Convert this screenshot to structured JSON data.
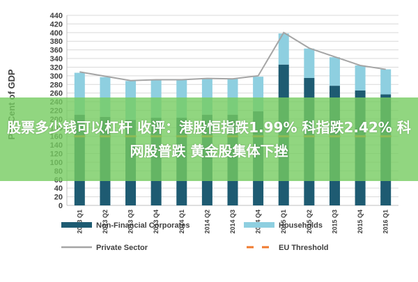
{
  "colors": {
    "non_financial": "#1e5b72",
    "households": "#8ecfe0",
    "private_sector": "#a5a5a5",
    "eu_threshold": "#f07a2e",
    "banner": "#76cc60",
    "grid": "#d9d9d9"
  },
  "banner": {
    "text": "股票多少钱可以杠杆 收评：港股恒指跌1.99% 科指跌2.42% 科网股普跌 黄金股集体下挫"
  },
  "chart_data": {
    "type": "bar",
    "stacked": true,
    "title": "",
    "xlabel": "",
    "ylabel": "Per Cent of GDP",
    "ylim": [
      0,
      440
    ],
    "yticks": [
      0,
      20,
      40,
      60,
      80,
      100,
      120,
      140,
      160,
      180,
      200,
      220,
      240,
      260,
      280,
      300,
      320,
      340,
      360,
      380,
      400,
      420,
      440
    ],
    "categories": [
      "2013 Q1",
      "2013 Q2",
      "2013 Q3",
      "2013 Q4",
      "2014 Q1",
      "2014 Q2",
      "2014 Q3",
      "2014 Q4",
      "2015 Q1",
      "2015 Q2",
      "2015 Q3",
      "2015 Q4",
      "2016 Q1"
    ],
    "series": [
      {
        "name": "Non-Financial Corporates",
        "kind": "bar",
        "values": [
          210,
          205,
          198,
          203,
          203,
          210,
          210,
          218,
          326,
          295,
          277,
          266,
          257
        ]
      },
      {
        "name": "Households",
        "kind": "bar",
        "values": [
          97,
          92,
          90,
          88,
          88,
          84,
          83,
          80,
          72,
          68,
          66,
          58,
          58
        ]
      },
      {
        "name": "Private Sector",
        "kind": "line",
        "values": [
          309,
          299,
          289,
          291,
          291,
          294,
          293,
          300,
          400,
          364,
          344,
          324,
          315
        ]
      },
      {
        "name": "EU Threshold",
        "kind": "line-dashed",
        "values": [
          160,
          160,
          160,
          160,
          160,
          160,
          160,
          160,
          160,
          160,
          160,
          160,
          160
        ]
      }
    ],
    "legend": [
      {
        "label": "Non-Financial Corporates",
        "series": "Non-Financial Corporates",
        "style": "bar"
      },
      {
        "label": "Households",
        "series": "Households",
        "style": "bar"
      },
      {
        "label": "Private Sector",
        "series": "Private Sector",
        "style": "line"
      },
      {
        "label": "EU Threshold",
        "series": "EU Threshold",
        "style": "dash"
      }
    ],
    "legend_position": "bottom"
  }
}
